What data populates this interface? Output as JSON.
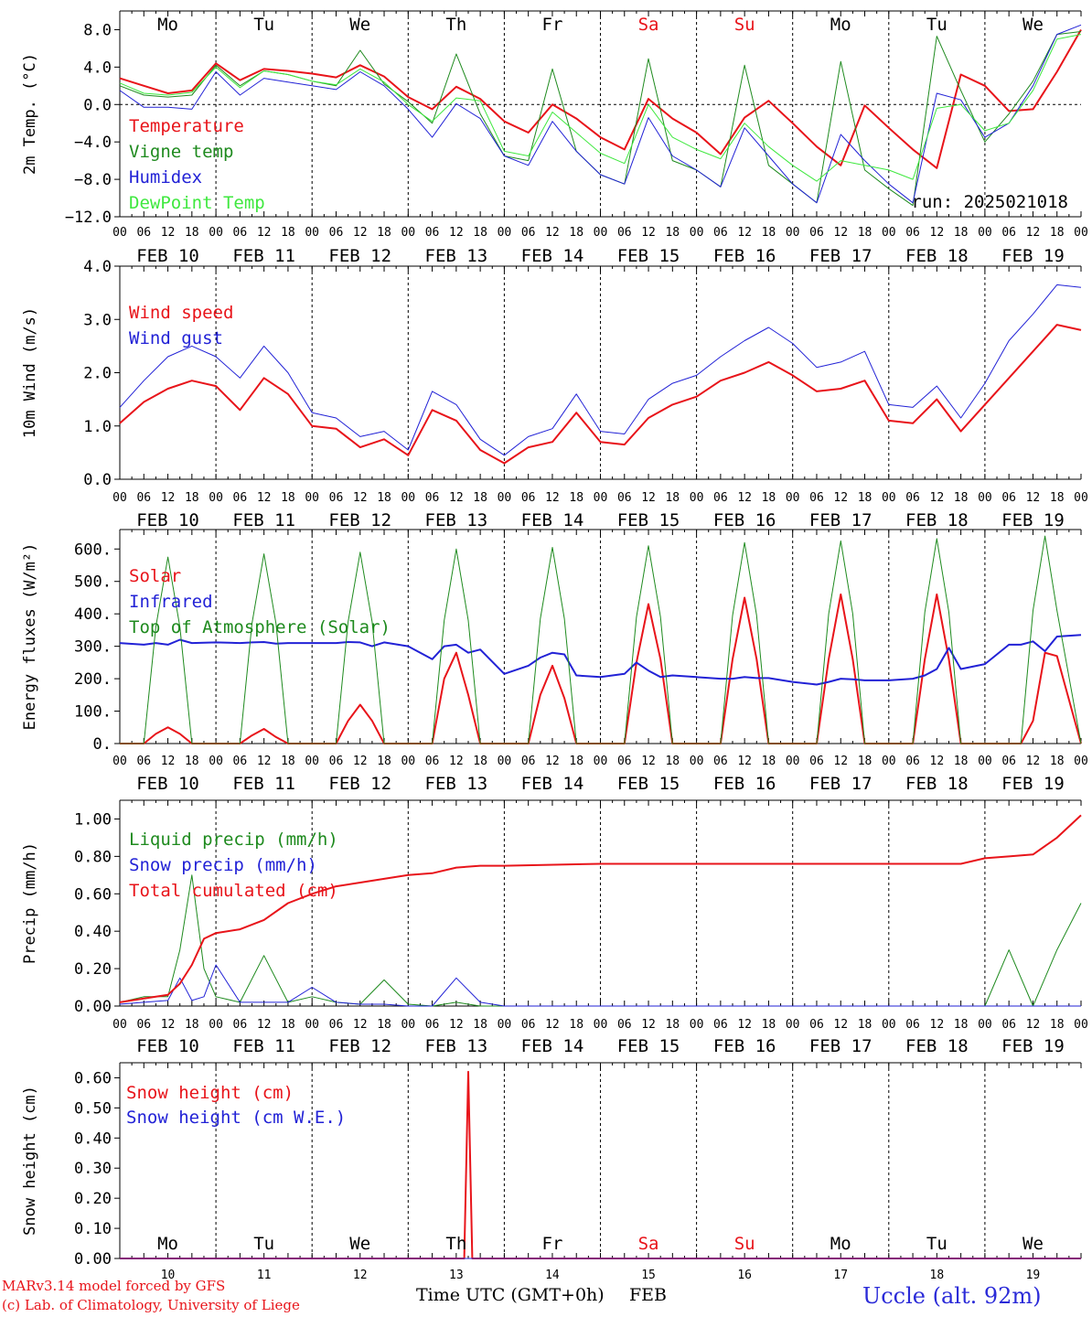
{
  "days": [
    "Mo",
    "Tu",
    "We",
    "Th",
    "Fr",
    "Sa",
    "Su",
    "Mo",
    "Tu",
    "We"
  ],
  "day_colors": [
    "#000000",
    "#000000",
    "#000000",
    "#000000",
    "#000000",
    "#e8141a",
    "#e8141a",
    "#000000",
    "#000000",
    "#000000"
  ],
  "hour_ticks": [
    "00",
    "06",
    "12",
    "18"
  ],
  "hour_tick_end": "00",
  "date_labels": [
    "FEB 10",
    "FEB 11",
    "FEB 12",
    "FEB 13",
    "FEB 14",
    "FEB 15",
    "FEB 16",
    "FEB 17",
    "FEB 18",
    "FEB 19"
  ],
  "day_numbers": [
    "10",
    "11",
    "12",
    "13",
    "14",
    "15",
    "16",
    "17",
    "18",
    "19"
  ],
  "run_label": "run: 2025021018",
  "x_title": "Time UTC (GMT+0h)",
  "x_month": "FEB",
  "credit_line1": "MARv3.14 model forced by GFS",
  "credit_line2": "(c) Lab. of Climatology, University of Liege",
  "station": "Uccle (alt. 92m)",
  "chart_data": [
    {
      "type": "line",
      "ylabel": "2m Temp. (°C)",
      "ylim": [
        -12,
        10
      ],
      "yticks": [
        -12,
        -8,
        -4,
        0,
        4,
        8
      ],
      "ytick_labels": [
        "−12.0",
        "−8.0",
        "−4.0",
        "0.0",
        "4.0",
        "8.0"
      ],
      "zero_line": true,
      "x_hours": [
        0,
        6,
        12,
        18,
        24,
        30,
        36,
        42,
        48,
        54,
        60,
        66,
        72,
        78,
        84,
        90,
        96,
        102,
        108,
        114,
        120,
        126,
        132,
        138,
        144,
        150,
        156,
        162,
        168,
        174,
        180,
        186,
        192,
        198,
        204,
        210,
        216,
        222,
        228,
        234,
        240
      ],
      "series": [
        {
          "name": "Temperature",
          "color": "#e8141a",
          "width": 2,
          "values": [
            2.8,
            2.0,
            1.2,
            1.5,
            4.4,
            2.6,
            3.8,
            3.6,
            3.3,
            2.9,
            4.2,
            3.0,
            0.8,
            -0.5,
            1.9,
            0.6,
            -1.8,
            -3.0,
            0.0,
            -1.5,
            -3.5,
            -4.8,
            0.6,
            -1.5,
            -3.0,
            -5.3,
            -1.4,
            0.4,
            -2.0,
            -4.5,
            -6.5,
            -0.1,
            -2.5,
            -4.8,
            -6.8,
            3.2,
            2.0,
            -0.7,
            -0.5,
            3.5,
            8.0
          ]
        },
        {
          "name": "Vigne temp",
          "color": "#1e8a1e",
          "width": 1,
          "values": [
            2.0,
            1.0,
            0.8,
            1.0,
            4.2,
            2.0,
            3.6,
            3.2,
            2.5,
            2.0,
            5.8,
            2.2,
            0.3,
            -2.0,
            5.4,
            -1.0,
            -5.5,
            -6.0,
            3.8,
            -5.0,
            -7.5,
            -8.5,
            4.9,
            -6.0,
            -7.0,
            -8.8,
            4.2,
            -6.5,
            -8.5,
            -10.5,
            4.6,
            -7.0,
            -9.0,
            -10.8,
            7.3,
            1.5,
            -4.0,
            -1.0,
            2.5,
            7.5,
            7.8
          ]
        },
        {
          "name": "Humidex",
          "color": "#2222d6",
          "width": 1,
          "values": [
            1.5,
            -0.3,
            -0.3,
            -0.5,
            3.5,
            1.0,
            2.8,
            2.4,
            2.0,
            1.6,
            3.5,
            2.0,
            -0.5,
            -3.5,
            0.1,
            -1.5,
            -5.5,
            -6.5,
            -1.8,
            -5.0,
            -7.5,
            -8.5,
            -1.4,
            -5.5,
            -7.0,
            -8.8,
            -2.5,
            -5.5,
            -8.5,
            -10.5,
            -3.2,
            -6.0,
            -8.5,
            -10.5,
            1.2,
            0.5,
            -3.5,
            -2.0,
            2.0,
            7.5,
            8.5
          ]
        },
        {
          "name": "DewPoint Temp",
          "color": "#3fe83f",
          "width": 1,
          "values": [
            2.3,
            1.2,
            1.0,
            1.3,
            4.0,
            1.8,
            3.6,
            3.2,
            2.5,
            2.1,
            3.8,
            2.4,
            0.0,
            -1.8,
            0.7,
            0.4,
            -5.0,
            -5.5,
            -0.8,
            -3.0,
            -5.2,
            -6.3,
            0.0,
            -3.5,
            -4.8,
            -5.8,
            -2.0,
            -4.5,
            -6.5,
            -8.2,
            -6.0,
            -6.5,
            -7.0,
            -8.0,
            -0.4,
            0.0,
            -2.8,
            -2.0,
            1.5,
            7.0,
            7.5
          ]
        }
      ],
      "legend_position": "top-left"
    },
    {
      "type": "line",
      "ylabel": "10m Wind (m/s)",
      "ylim": [
        0,
        4
      ],
      "yticks": [
        0,
        1,
        2,
        3,
        4
      ],
      "ytick_labels": [
        "0.0",
        "1.0",
        "2.0",
        "3.0",
        "4.0"
      ],
      "x_hours": [
        0,
        6,
        12,
        18,
        24,
        30,
        36,
        42,
        48,
        54,
        60,
        66,
        72,
        78,
        84,
        90,
        96,
        102,
        108,
        114,
        120,
        126,
        132,
        138,
        144,
        150,
        156,
        162,
        168,
        174,
        180,
        186,
        192,
        198,
        204,
        210,
        216,
        222,
        228,
        234,
        240
      ],
      "series": [
        {
          "name": "Wind speed",
          "color": "#e8141a",
          "width": 2,
          "values": [
            1.05,
            1.45,
            1.7,
            1.85,
            1.75,
            1.3,
            1.9,
            1.6,
            1.0,
            0.95,
            0.6,
            0.75,
            0.45,
            1.3,
            1.1,
            0.55,
            0.3,
            0.6,
            0.7,
            1.25,
            0.7,
            0.65,
            1.15,
            1.4,
            1.55,
            1.85,
            2.0,
            2.2,
            1.95,
            1.65,
            1.7,
            1.85,
            1.1,
            1.05,
            1.5,
            0.9,
            1.4,
            1.9,
            2.4,
            2.9,
            2.8
          ]
        },
        {
          "name": "Wind gust",
          "color": "#2222d6",
          "width": 1,
          "values": [
            1.35,
            1.85,
            2.3,
            2.5,
            2.3,
            1.9,
            2.5,
            2.0,
            1.25,
            1.15,
            0.8,
            0.9,
            0.55,
            1.65,
            1.4,
            0.75,
            0.45,
            0.8,
            0.95,
            1.6,
            0.9,
            0.85,
            1.5,
            1.8,
            1.95,
            2.3,
            2.6,
            2.85,
            2.55,
            2.1,
            2.2,
            2.4,
            1.4,
            1.35,
            1.75,
            1.15,
            1.8,
            2.6,
            3.1,
            3.65,
            3.6
          ]
        }
      ],
      "legend_position": "top-left"
    },
    {
      "type": "line",
      "ylabel": "Energy fluxes (W/m²)",
      "ylim": [
        0,
        660
      ],
      "yticks": [
        0,
        100,
        200,
        300,
        400,
        500,
        600
      ],
      "ytick_labels": [
        "0.",
        "100.",
        "200.",
        "300.",
        "400.",
        "500.",
        "600."
      ],
      "x_hours": [
        0,
        6,
        9,
        12,
        15,
        18,
        24,
        30,
        33,
        36,
        39,
        42,
        48,
        54,
        57,
        60,
        63,
        66,
        72,
        78,
        81,
        84,
        87,
        90,
        96,
        102,
        105,
        108,
        111,
        114,
        120,
        126,
        129,
        132,
        135,
        138,
        144,
        150,
        153,
        156,
        159,
        162,
        168,
        174,
        177,
        180,
        183,
        186,
        192,
        198,
        201,
        204,
        207,
        210,
        216,
        222,
        225,
        228,
        231,
        234,
        240
      ],
      "series": [
        {
          "name": "Solar",
          "color": "#e8141a",
          "width": 2,
          "values": [
            0,
            0,
            30,
            50,
            30,
            0,
            0,
            0,
            25,
            45,
            20,
            0,
            0,
            0,
            70,
            120,
            70,
            0,
            0,
            0,
            200,
            280,
            150,
            0,
            0,
            0,
            150,
            240,
            140,
            0,
            0,
            0,
            250,
            430,
            260,
            0,
            0,
            0,
            260,
            450,
            260,
            0,
            0,
            0,
            260,
            460,
            260,
            0,
            0,
            0,
            260,
            460,
            260,
            0,
            0,
            0,
            0,
            70,
            280,
            270,
            0
          ]
        },
        {
          "name": "Infrared",
          "color": "#2222d6",
          "width": 2,
          "values": [
            310,
            305,
            310,
            305,
            320,
            310,
            312,
            310,
            312,
            313,
            308,
            310,
            310,
            310,
            313,
            312,
            300,
            312,
            300,
            260,
            300,
            305,
            280,
            290,
            215,
            240,
            265,
            280,
            275,
            210,
            205,
            215,
            250,
            225,
            205,
            210,
            205,
            200,
            200,
            205,
            202,
            202,
            190,
            182,
            190,
            200,
            198,
            195,
            195,
            200,
            210,
            230,
            295,
            230,
            245,
            305,
            305,
            315,
            285,
            330,
            335
          ]
        },
        {
          "name": "Top of Atmosphere (Solar)",
          "color": "#1e8a1e",
          "width": 1,
          "values": [
            0,
            0,
            360,
            575,
            360,
            0,
            0,
            0,
            370,
            585,
            370,
            0,
            0,
            0,
            375,
            590,
            375,
            0,
            0,
            0,
            380,
            600,
            380,
            0,
            0,
            0,
            385,
            605,
            385,
            0,
            0,
            0,
            390,
            610,
            390,
            0,
            0,
            0,
            395,
            620,
            395,
            0,
            0,
            0,
            400,
            625,
            400,
            0,
            0,
            0,
            405,
            632,
            405,
            0,
            0,
            0,
            0,
            410,
            640,
            410,
            0
          ]
        }
      ],
      "legend_position": "top-left"
    },
    {
      "type": "line",
      "ylabel": "Precip (mm/h)",
      "ylim": [
        0,
        1.1
      ],
      "yticks": [
        0,
        0.2,
        0.4,
        0.6,
        0.8,
        1.0
      ],
      "ytick_labels": [
        "0.00",
        "0.20",
        "0.40",
        "0.60",
        "0.80",
        "1.00"
      ],
      "x_hours": [
        0,
        6,
        12,
        15,
        18,
        21,
        24,
        30,
        36,
        42,
        48,
        54,
        60,
        66,
        72,
        78,
        84,
        90,
        96,
        120,
        144,
        168,
        192,
        210,
        216,
        222,
        228,
        234,
        240
      ],
      "series": [
        {
          "name": "Liquid precip (mm/h)",
          "color": "#1e8a1e",
          "width": 1,
          "values": [
            0.02,
            0.05,
            0.05,
            0.3,
            0.7,
            0.2,
            0.05,
            0.02,
            0.27,
            0.02,
            0.05,
            0.02,
            0.01,
            0.14,
            0.01,
            0.0,
            0.02,
            0.0,
            0.0,
            0.0,
            0.0,
            0.0,
            0.0,
            0.0,
            0.0,
            0.3,
            0.0,
            0.3,
            0.55
          ]
        },
        {
          "name": "Snow precip (mm/h)",
          "color": "#2222d6",
          "width": 1,
          "values": [
            0.01,
            0.02,
            0.03,
            0.15,
            0.03,
            0.05,
            0.22,
            0.02,
            0.02,
            0.02,
            0.1,
            0.02,
            0.01,
            0.01,
            0.0,
            0.0,
            0.15,
            0.02,
            0.0,
            0.0,
            0.0,
            0.0,
            0.0,
            0.0,
            0.0,
            0.0,
            0.0,
            0.0,
            0.0
          ]
        },
        {
          "name": "Total cumulated (cm)",
          "color": "#e8141a",
          "width": 2,
          "values": [
            0.02,
            0.04,
            0.06,
            0.12,
            0.22,
            0.36,
            0.39,
            0.41,
            0.46,
            0.55,
            0.6,
            0.64,
            0.66,
            0.68,
            0.7,
            0.71,
            0.74,
            0.75,
            0.75,
            0.76,
            0.76,
            0.76,
            0.76,
            0.76,
            0.79,
            0.8,
            0.81,
            0.9,
            1.02
          ]
        }
      ],
      "legend_position": "top-left"
    },
    {
      "type": "line",
      "ylabel": "Snow height (cm)",
      "ylim": [
        0,
        0.65
      ],
      "yticks": [
        0,
        0.1,
        0.2,
        0.3,
        0.4,
        0.5,
        0.6
      ],
      "ytick_labels": [
        "0.00",
        "0.10",
        "0.20",
        "0.30",
        "0.40",
        "0.50",
        "0.60"
      ],
      "x_hours": [
        0,
        84,
        86,
        87,
        88,
        240
      ],
      "series": [
        {
          "name": "Snow height (cm)",
          "color": "#e8141a",
          "width": 2,
          "values": [
            0,
            0,
            0,
            0.62,
            0,
            0
          ]
        },
        {
          "name": "Snow height (cm W.E.)",
          "color": "#2222d6",
          "width": 1,
          "values": [
            0,
            0,
            0,
            0,
            0,
            0
          ]
        }
      ],
      "legend_position": "top-left"
    }
  ]
}
